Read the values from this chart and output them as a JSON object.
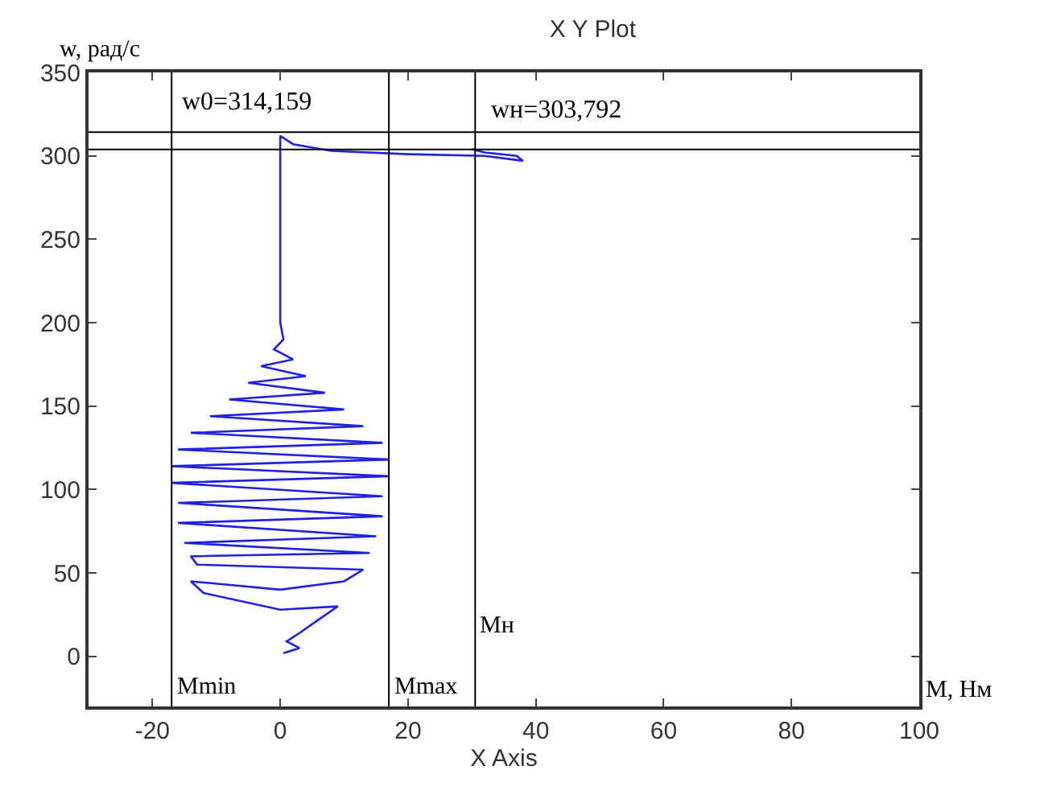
{
  "chart_data": {
    "type": "line",
    "title": "X Y Plot",
    "xlabel": "X Axis",
    "ylabel": "w, рад/с",
    "annotations": [
      "M, Нм"
    ],
    "series": [
      {
        "color": "#2020e0",
        "x": [
          0.5,
          3,
          1,
          3,
          6,
          9,
          0,
          -12,
          -14,
          0,
          10,
          13,
          -13,
          -14,
          14,
          -15,
          15,
          -16,
          16,
          -16,
          16,
          -17,
          17,
          -17,
          17,
          -16,
          16,
          -14,
          13,
          -11,
          10,
          -8,
          7,
          -5,
          4,
          -3,
          2,
          -1,
          0.5,
          0,
          0,
          0,
          0,
          2,
          8,
          20,
          32,
          38,
          37,
          32,
          30
        ],
        "values": [
          2,
          5,
          9,
          14,
          22,
          30,
          28,
          38,
          45,
          40,
          45,
          52,
          55,
          60,
          62,
          68,
          72,
          80,
          84,
          92,
          96,
          104,
          108,
          114,
          118,
          124,
          128,
          134,
          138,
          144,
          148,
          154,
          158,
          164,
          168,
          174,
          178,
          184,
          190,
          200,
          250,
          300,
          312,
          307,
          303,
          301,
          300,
          297,
          300,
          302,
          304
        ]
      }
    ],
    "ref_lines": [
      {
        "axis": "y",
        "value": 314.159,
        "label": "w0=314,159"
      },
      {
        "axis": "y",
        "value": 303.792,
        "label": "wн=303,792"
      },
      {
        "axis": "x",
        "value": -17,
        "label": "Mmin"
      },
      {
        "axis": "x",
        "value": 17,
        "label": "Mmax"
      },
      {
        "axis": "x",
        "value": 30.5,
        "label": "Mн"
      }
    ],
    "xlim": [
      -30,
      100
    ],
    "xticks": [
      -20,
      0,
      20,
      40,
      60,
      80,
      100
    ],
    "ylim": [
      -30,
      350
    ],
    "yticks": [
      0,
      50,
      100,
      150,
      200,
      250,
      300,
      350
    ],
    "grid": false,
    "marker": "none",
    "line_style": "solid"
  }
}
